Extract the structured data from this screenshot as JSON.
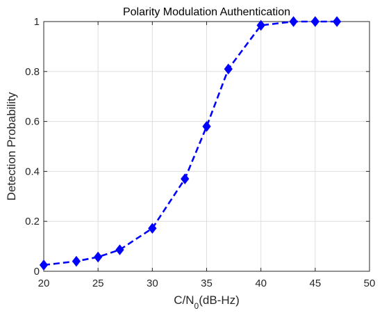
{
  "chart_data": {
    "type": "line",
    "title": "Polarity Modulation Authentication",
    "xlabel_main": "C/N",
    "xlabel_sub": "0",
    "xlabel_tail": "(dB-Hz)",
    "ylabel": "Detection Probability",
    "xlim": [
      20,
      50
    ],
    "ylim": [
      0,
      1
    ],
    "xticks": [
      20,
      25,
      30,
      35,
      40,
      45,
      50
    ],
    "yticks": [
      0,
      0.2,
      0.4,
      0.6,
      0.8,
      1
    ],
    "xtick_labels": [
      "20",
      "25",
      "30",
      "35",
      "40",
      "45",
      "50"
    ],
    "ytick_labels": [
      "0",
      "0.2",
      "0.4",
      "0.6",
      "0.8",
      "1"
    ],
    "grid": true,
    "series": [
      {
        "color": "#0000ff",
        "line_style": "dashed",
        "marker": "diamond",
        "x": [
          20,
          23,
          25,
          27,
          30,
          33,
          35,
          37,
          40,
          43,
          45,
          47
        ],
        "y": [
          0.025,
          0.04,
          0.057,
          0.086,
          0.172,
          0.37,
          0.58,
          0.81,
          0.985,
          1.0,
          1.0,
          1.0
        ]
      }
    ]
  }
}
